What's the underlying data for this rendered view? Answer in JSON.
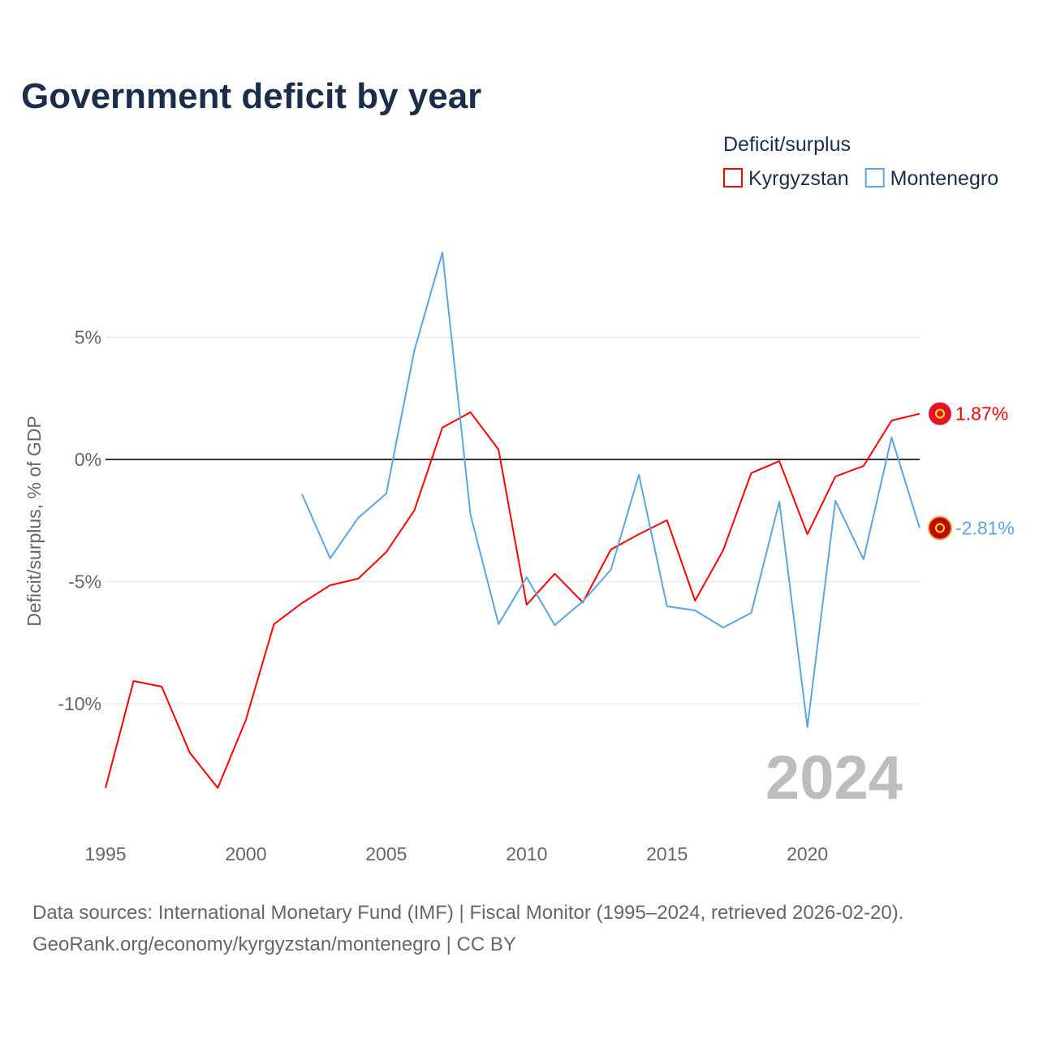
{
  "chart_data": {
    "type": "line",
    "title": "Government deficit by year",
    "xlabel": "",
    "ylabel": "Deficit/surplus, % of GDP",
    "legend_title": "Deficit/surplus",
    "legend_placement": "top-right",
    "xlim": [
      1995,
      2024
    ],
    "ylim": [
      -15,
      9.5
    ],
    "x_ticks": [
      1995,
      2000,
      2005,
      2010,
      2015,
      2020
    ],
    "x_tick_labels": [
      "1995",
      "2000",
      "2005",
      "2010",
      "2015",
      "2020"
    ],
    "y_ticks": [
      5,
      0,
      -5,
      -10
    ],
    "y_tick_labels": [
      "5%",
      "0%",
      "-5%",
      "-10%"
    ],
    "grid": true,
    "current_year_label": "2024",
    "series": [
      {
        "name": "Kyrgyzstan",
        "color": "#ff0000",
        "end_label": "1.87%",
        "x": [
          1995,
          1996,
          1997,
          1998,
          1999,
          2000,
          2001,
          2002,
          2003,
          2004,
          2005,
          2006,
          2007,
          2008,
          2009,
          2010,
          2011,
          2012,
          2013,
          2014,
          2015,
          2016,
          2017,
          2018,
          2019,
          2020,
          2021,
          2022,
          2023,
          2024
        ],
        "values": [
          -13.45,
          -9.07,
          -9.3,
          -12.0,
          -13.45,
          -10.66,
          -6.74,
          -5.88,
          -5.15,
          -4.88,
          -3.79,
          -2.09,
          1.3,
          1.93,
          0.4,
          -5.95,
          -4.68,
          -5.85,
          -3.69,
          -3.06,
          -2.49,
          -5.78,
          -3.72,
          -0.56,
          -0.07,
          -3.06,
          -0.7,
          -0.27,
          1.59,
          1.87
        ]
      },
      {
        "name": "Montenegro",
        "color": "#5ba4e8",
        "end_label": "-2.81%",
        "x": [
          2002,
          2003,
          2004,
          2005,
          2006,
          2007,
          2008,
          2009,
          2010,
          2011,
          2012,
          2013,
          2014,
          2015,
          2016,
          2017,
          2018,
          2019,
          2020,
          2021,
          2022,
          2023,
          2024
        ],
        "values": [
          -1.43,
          -4.05,
          -2.39,
          -1.4,
          4.45,
          8.47,
          -2.26,
          -6.74,
          -4.82,
          -6.78,
          -5.81,
          -4.52,
          -0.63,
          -6.01,
          -6.18,
          -6.88,
          -6.28,
          -1.73,
          -10.96,
          -1.69,
          -4.09,
          0.9,
          -2.81
        ]
      }
    ]
  },
  "footer": {
    "line1": "Data sources: International Monetary Fund (IMF) | Fiscal Monitor (1995–2024, retrieved 2026-02-20).",
    "line2": "GeoRank.org/economy/kyrgyzstan/montenegro | CC BY"
  }
}
